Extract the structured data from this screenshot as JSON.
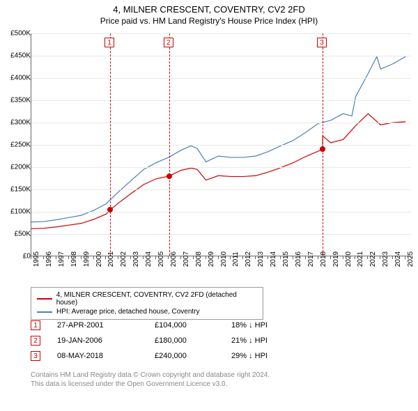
{
  "title": "4, MILNER CRESCENT, COVENTRY, CV2 2FD",
  "subtitle": "Price paid vs. HM Land Registry's House Price Index (HPI)",
  "chart": {
    "type": "line",
    "x_domain": [
      1995,
      2025.5
    ],
    "y_domain": [
      0,
      500000
    ],
    "y_ticks": [
      0,
      50000,
      100000,
      150000,
      200000,
      250000,
      300000,
      350000,
      400000,
      450000,
      500000
    ],
    "y_tick_labels": [
      "£0",
      "£50K",
      "£100K",
      "£150K",
      "£200K",
      "£250K",
      "£300K",
      "£350K",
      "£400K",
      "£450K",
      "£500K"
    ],
    "x_ticks": [
      1995,
      1996,
      1997,
      1998,
      1999,
      2000,
      2001,
      2002,
      2003,
      2004,
      2005,
      2006,
      2007,
      2008,
      2009,
      2010,
      2011,
      2012,
      2013,
      2014,
      2015,
      2016,
      2017,
      2018,
      2019,
      2020,
      2021,
      2022,
      2023,
      2024,
      2025
    ],
    "grid_color": "#e8e8e8",
    "axis_color": "#666666",
    "background_color": "#ffffff",
    "series": [
      {
        "name": "hpi",
        "label": "HPI: Average price, detached house, Coventry",
        "color": "#4a7fb8",
        "width": 1.2,
        "points": [
          [
            1995,
            77000
          ],
          [
            1996,
            78000
          ],
          [
            1997,
            82000
          ],
          [
            1998,
            87000
          ],
          [
            1999,
            92000
          ],
          [
            2000,
            103000
          ],
          [
            2001,
            118000
          ],
          [
            2002,
            145000
          ],
          [
            2003,
            170000
          ],
          [
            2004,
            195000
          ],
          [
            2005,
            210000
          ],
          [
            2006,
            222000
          ],
          [
            2007,
            238000
          ],
          [
            2007.8,
            248000
          ],
          [
            2008.3,
            242000
          ],
          [
            2009,
            212000
          ],
          [
            2010,
            225000
          ],
          [
            2011,
            222000
          ],
          [
            2012,
            222000
          ],
          [
            2013,
            225000
          ],
          [
            2014,
            235000
          ],
          [
            2015,
            248000
          ],
          [
            2016,
            260000
          ],
          [
            2017,
            278000
          ],
          [
            2018,
            298000
          ],
          [
            2019,
            305000
          ],
          [
            2020,
            320000
          ],
          [
            2020.7,
            315000
          ],
          [
            2021,
            358000
          ],
          [
            2022,
            410000
          ],
          [
            2022.7,
            448000
          ],
          [
            2023,
            420000
          ],
          [
            2024,
            432000
          ],
          [
            2025,
            448000
          ]
        ]
      },
      {
        "name": "property",
        "label": "4, MILNER CRESCENT, COVENTRY, CV2 2FD (detached house)",
        "color": "#cc0000",
        "width": 1.2,
        "points": [
          [
            1995,
            62000
          ],
          [
            1996,
            63000
          ],
          [
            1997,
            66000
          ],
          [
            1998,
            70000
          ],
          [
            1999,
            74000
          ],
          [
            2000,
            83000
          ],
          [
            2001,
            95000
          ],
          [
            2001.32,
            104000
          ],
          [
            2002,
            120000
          ],
          [
            2003,
            141000
          ],
          [
            2004,
            161000
          ],
          [
            2005,
            174000
          ],
          [
            2006.05,
            180000
          ],
          [
            2007,
            193000
          ],
          [
            2007.8,
            198000
          ],
          [
            2008.3,
            195000
          ],
          [
            2009,
            171000
          ],
          [
            2010,
            181000
          ],
          [
            2011,
            179000
          ],
          [
            2012,
            179000
          ],
          [
            2013,
            181000
          ],
          [
            2014,
            189000
          ],
          [
            2015,
            199000
          ],
          [
            2016,
            210000
          ],
          [
            2017,
            224000
          ],
          [
            2018.35,
            240000
          ],
          [
            2018.36,
            270000
          ],
          [
            2019,
            255000
          ],
          [
            2020,
            262000
          ],
          [
            2021,
            293000
          ],
          [
            2022,
            320000
          ],
          [
            2023,
            295000
          ],
          [
            2024,
            300000
          ],
          [
            2025,
            302000
          ]
        ]
      }
    ],
    "markers": [
      {
        "n": 1,
        "x": 2001.32,
        "y": 104000,
        "color": "#cc0000"
      },
      {
        "n": 2,
        "x": 2006.05,
        "y": 180000,
        "color": "#cc0000"
      },
      {
        "n": 3,
        "x": 2018.35,
        "y": 240000,
        "color": "#cc0000"
      }
    ]
  },
  "legend": {
    "items": [
      {
        "color": "#cc0000",
        "label": "4, MILNER CRESCENT, COVENTRY, CV2 2FD (detached house)"
      },
      {
        "color": "#4a7fb8",
        "label": "HPI: Average price, detached house, Coventry"
      }
    ]
  },
  "sales": [
    {
      "n": 1,
      "color": "#cc0000",
      "date": "27-APR-2001",
      "price": "£104,000",
      "diff": "18% ↓ HPI"
    },
    {
      "n": 2,
      "color": "#cc0000",
      "date": "19-JAN-2006",
      "price": "£180,000",
      "diff": "21% ↓ HPI"
    },
    {
      "n": 3,
      "color": "#cc0000",
      "date": "08-MAY-2018",
      "price": "£240,000",
      "diff": "29% ↓ HPI"
    }
  ],
  "footer": {
    "line1": "Contains HM Land Registry data © Crown copyright and database right 2024.",
    "line2": "This data is licensed under the Open Government Licence v3.0."
  }
}
